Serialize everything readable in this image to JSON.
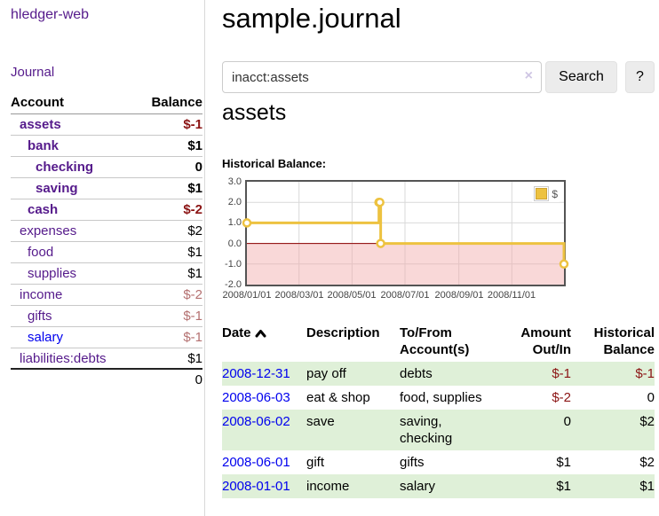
{
  "app": {
    "brand": "hledger-web",
    "nav_journal": "Journal"
  },
  "sidebar": {
    "header": {
      "account": "Account",
      "balance": "Balance"
    },
    "accounts": [
      {
        "name": "assets",
        "balance": "$-1",
        "indent": 0,
        "bold": true,
        "link_color": "purple"
      },
      {
        "name": "bank",
        "balance": "$1",
        "indent": 1,
        "bold": true,
        "link_color": "purple"
      },
      {
        "name": "checking",
        "balance": "0",
        "indent": 2,
        "bold": true,
        "link_color": "purple"
      },
      {
        "name": "saving",
        "balance": "$1",
        "indent": 2,
        "bold": true,
        "link_color": "purple"
      },
      {
        "name": "cash",
        "balance": "$-2",
        "indent": 1,
        "bold": true,
        "link_color": "purple"
      },
      {
        "name": "expenses",
        "balance": "$2",
        "indent": 0,
        "bold": false,
        "link_color": "purple"
      },
      {
        "name": "food",
        "balance": "$1",
        "indent": 1,
        "bold": false,
        "link_color": "purple"
      },
      {
        "name": "supplies",
        "balance": "$1",
        "indent": 1,
        "bold": false,
        "link_color": "purple"
      },
      {
        "name": "income",
        "balance": "$-2",
        "indent": 0,
        "bold": false,
        "link_color": "purple"
      },
      {
        "name": "gifts",
        "balance": "$-1",
        "indent": 1,
        "bold": false,
        "link_color": "purple"
      },
      {
        "name": "salary",
        "balance": "$-1",
        "indent": 1,
        "bold": false,
        "link_color": "blue"
      },
      {
        "name": "liabilities:debts",
        "balance": "$1",
        "indent": 0,
        "bold": false,
        "link_color": "purple"
      }
    ],
    "total": "0"
  },
  "main": {
    "title": "sample.journal",
    "search": {
      "value": "inacct:assets",
      "clear_icon": "×",
      "button_label": "Search",
      "help_label": "?"
    },
    "account_heading": "assets",
    "chart_label": "Historical Balance:"
  },
  "chart_data": {
    "type": "line",
    "title": "Historical Balance:",
    "legend": "$",
    "legend_position": "top-right",
    "grid": true,
    "ylim": [
      -2,
      3
    ],
    "yticks": [
      3.0,
      2.0,
      1.0,
      0.0,
      -1.0,
      -2.0
    ],
    "ytick_labels": [
      "3.0",
      "2.0",
      "1.0",
      "0.0",
      "-1.0",
      "-2.0"
    ],
    "xlim": [
      "2008-01-01",
      "2008-12-31"
    ],
    "xticks": [
      "2008/01/01",
      "2008/03/01",
      "2008/05/01",
      "2008/07/01",
      "2008/09/01",
      "2008/11/01"
    ],
    "series": [
      {
        "name": "$",
        "color": "#edc240",
        "steps": true,
        "points": [
          [
            "2008-01-01",
            1
          ],
          [
            "2008-06-01",
            2
          ],
          [
            "2008-06-02",
            2
          ],
          [
            "2008-06-03",
            0
          ],
          [
            "2008-12-31",
            -1
          ]
        ]
      }
    ],
    "negative_region_color": "#f1a9a9",
    "zero_line_color": "#8b0000"
  },
  "register": {
    "columns": [
      "Date",
      "Description",
      "To/From Account(s)",
      "Amount Out/In",
      "Historical Balance"
    ],
    "rows": [
      {
        "date": "2008-12-31",
        "description": "pay off",
        "accounts": [
          "debts"
        ],
        "amount": "$-1",
        "balance": "$-1"
      },
      {
        "date": "2008-06-03",
        "description": "eat & shop",
        "accounts": [
          "food, supplies"
        ],
        "amount": "$-2",
        "balance": "0"
      },
      {
        "date": "2008-06-02",
        "description": "save",
        "accounts": [
          "saving,",
          "checking"
        ],
        "amount": "0",
        "balance": "$2"
      },
      {
        "date": "2008-06-01",
        "description": "gift",
        "accounts": [
          "gifts"
        ],
        "amount": "$1",
        "balance": "$2"
      },
      {
        "date": "2008-01-01",
        "description": "income",
        "accounts": [
          "salary"
        ],
        "amount": "$1",
        "balance": "$1"
      }
    ]
  },
  "colors": {
    "link_purple": "#551a8b",
    "link_blue": "#0000ee",
    "negative_strong": "#8b1414",
    "negative_muted": "#b47070",
    "row_green": "#dff0d8",
    "series_gold": "#edc240",
    "plot_border": "#545454"
  }
}
